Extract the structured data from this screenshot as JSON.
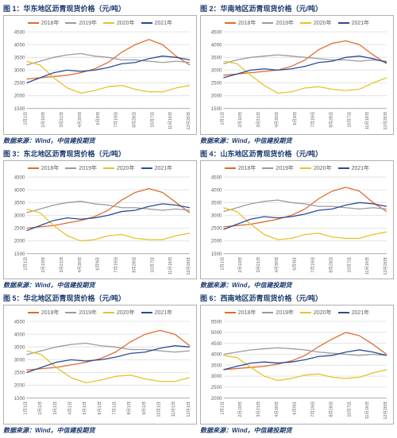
{
  "source_text": "数据来源：Wind，中信建投期货",
  "colors": {
    "s2018": "#e06a2a",
    "s2019": "#9a9a9a",
    "s2020": "#e6c22a",
    "s2021": "#2a4a9a",
    "grid": "#e5e5e5",
    "axis": "#b0b0b0",
    "title": "#1a3a6e",
    "bg": "#ffffff"
  },
  "legend_labels": [
    "2018年",
    "2019年",
    "2020年",
    "2021年"
  ],
  "xlabels_dense": [
    "1月1日",
    "2月10日",
    "3月21日",
    "4月30日",
    "6月9日",
    "7月19日",
    "8月28日",
    "10月7日",
    "11月16日",
    "12月26日"
  ],
  "xlabels_month": [
    "1月1日",
    "2月1日",
    "3月1日",
    "4月1日",
    "5月1日",
    "6月1日",
    "7月1日",
    "8月1日",
    "9月1日",
    "10月1日",
    "11月1日",
    "12月1日"
  ],
  "panels": [
    {
      "title": "图 1：华东地区沥青现货价格（元/吨）",
      "ylim": [
        1500,
        4500
      ],
      "ystep": 500,
      "xkind": "dense",
      "series": {
        "2018": [
          2650,
          2700,
          2750,
          2800,
          2900,
          3050,
          3300,
          3700,
          4000,
          4200,
          4000,
          3550,
          3200
        ],
        "2019": [
          3200,
          3350,
          3500,
          3600,
          3650,
          3550,
          3500,
          3400,
          3400,
          3350,
          3300,
          3350,
          3300
        ],
        "2020": [
          3350,
          3200,
          2700,
          2300,
          2100,
          2200,
          2350,
          2400,
          2250,
          2150,
          2150,
          2300,
          2400
        ],
        "2021": [
          2500,
          2700,
          2900,
          3000,
          2950,
          3000,
          3100,
          3250,
          3300,
          3450,
          3550,
          3500,
          3400
        ]
      }
    },
    {
      "title": "图 2：华南地区沥青现货价格（元/吨）",
      "ylim": [
        1500,
        4500
      ],
      "ystep": 500,
      "xkind": "dense",
      "series": {
        "2018": [
          2800,
          2850,
          2900,
          2950,
          3000,
          3150,
          3400,
          3800,
          4050,
          4150,
          4000,
          3600,
          3250
        ],
        "2019": [
          3250,
          3400,
          3500,
          3550,
          3600,
          3550,
          3500,
          3450,
          3400,
          3400,
          3350,
          3400,
          3350
        ],
        "2020": [
          3350,
          3250,
          2800,
          2400,
          2100,
          2150,
          2300,
          2350,
          2250,
          2200,
          2250,
          2500,
          2700
        ],
        "2021": [
          2700,
          2850,
          3000,
          3050,
          3000,
          3050,
          3150,
          3300,
          3350,
          3500,
          3550,
          3450,
          3300
        ]
      }
    },
    {
      "title": "图 3：东北地区沥青现货价格（元/吨）",
      "ylim": [
        1500,
        4500
      ],
      "ystep": 500,
      "xkind": "dense",
      "series": {
        "2018": [
          2500,
          2550,
          2600,
          2700,
          2800,
          2950,
          3200,
          3600,
          3900,
          4050,
          3900,
          3500,
          3100
        ],
        "2019": [
          3100,
          3250,
          3400,
          3500,
          3550,
          3450,
          3400,
          3300,
          3300,
          3250,
          3200,
          3250,
          3200
        ],
        "2020": [
          3250,
          3100,
          2600,
          2200,
          2000,
          2050,
          2200,
          2250,
          2100,
          2050,
          2050,
          2200,
          2300
        ],
        "2021": [
          2400,
          2600,
          2800,
          2900,
          2850,
          2900,
          3000,
          3150,
          3200,
          3350,
          3450,
          3400,
          3300
        ]
      }
    },
    {
      "title": "图 4：山东地区沥青现货价格（元/吨）",
      "ylim": [
        1500,
        4500
      ],
      "ystep": 500,
      "xkind": "dense",
      "series": {
        "2018": [
          2550,
          2600,
          2650,
          2750,
          2850,
          3000,
          3250,
          3650,
          3950,
          4100,
          3950,
          3500,
          3150
        ],
        "2019": [
          3150,
          3300,
          3450,
          3550,
          3600,
          3500,
          3450,
          3350,
          3350,
          3300,
          3250,
          3300,
          3250
        ],
        "2020": [
          3300,
          3150,
          2650,
          2250,
          2050,
          2100,
          2250,
          2300,
          2150,
          2100,
          2100,
          2250,
          2350
        ],
        "2021": [
          2450,
          2650,
          2850,
          2950,
          2900,
          2950,
          3050,
          3200,
          3250,
          3400,
          3500,
          3450,
          3350
        ]
      }
    },
    {
      "title": "图 5：华北地区沥青现货价格（元/吨）",
      "ylim": [
        1500,
        4500
      ],
      "ystep": 500,
      "xkind": "month",
      "series": {
        "2018": [
          2600,
          2650,
          2700,
          2800,
          2900,
          3050,
          3300,
          3700,
          4000,
          4150,
          4000,
          3550
        ],
        "2019": [
          3200,
          3350,
          3500,
          3600,
          3650,
          3550,
          3500,
          3400,
          3400,
          3350,
          3300,
          3350
        ],
        "2020": [
          3350,
          3200,
          2700,
          2300,
          2100,
          2200,
          2350,
          2400,
          2250,
          2150,
          2150,
          2300
        ],
        "2021": [
          2500,
          2700,
          2900,
          3000,
          2950,
          3000,
          3100,
          3250,
          3300,
          3450,
          3550,
          3500
        ]
      }
    },
    {
      "title": "图 6：西南地区沥青现货价格（元/吨）",
      "ylim": [
        2000,
        5500
      ],
      "ystep": 500,
      "xkind": "dense",
      "series": {
        "2018": [
          3300,
          3350,
          3400,
          3450,
          3550,
          3700,
          3950,
          4350,
          4700,
          5000,
          4850,
          4450,
          4000
        ],
        "2019": [
          4000,
          4100,
          4200,
          4250,
          4300,
          4250,
          4200,
          4100,
          4050,
          4000,
          3950,
          4000,
          3950
        ],
        "2020": [
          3950,
          3850,
          3400,
          3000,
          2800,
          2900,
          3050,
          3100,
          2950,
          2900,
          2950,
          3150,
          3300
        ],
        "2021": [
          3300,
          3450,
          3600,
          3650,
          3600,
          3650,
          3750,
          3900,
          3950,
          4100,
          4200,
          4100,
          3950
        ]
      }
    }
  ]
}
